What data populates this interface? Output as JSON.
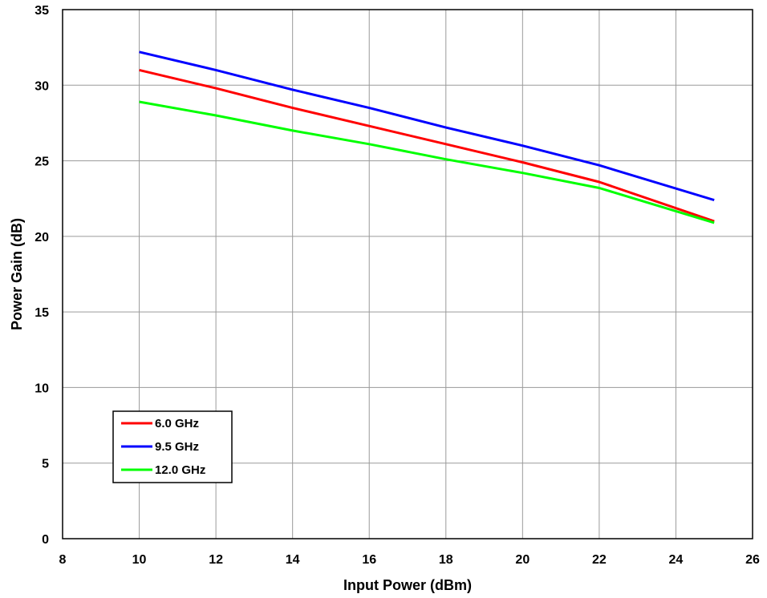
{
  "chart_data": {
    "type": "line",
    "xlabel": "Input Power (dBm)",
    "ylabel": "Power Gain  (dB)",
    "xlim": [
      8,
      26
    ],
    "ylim": [
      0,
      35
    ],
    "x_ticks": [
      "8",
      "10",
      "12",
      "14",
      "16",
      "18",
      "20",
      "22",
      "24",
      "26"
    ],
    "y_ticks": [
      "0",
      "5",
      "10",
      "15",
      "20",
      "25",
      "30",
      "35"
    ],
    "grid": true,
    "legend_position": "bottom-left",
    "series": [
      {
        "name": "6.0 GHz",
        "color": "#ff0000",
        "x": [
          10,
          12,
          14,
          16,
          18,
          20,
          22,
          25
        ],
        "y": [
          31.0,
          29.8,
          28.5,
          27.3,
          26.1,
          24.9,
          23.6,
          21.0
        ]
      },
      {
        "name": "9.5 GHz",
        "color": "#0000ff",
        "x": [
          10,
          12,
          14,
          16,
          18,
          20,
          22,
          25
        ],
        "y": [
          32.2,
          31.0,
          29.7,
          28.5,
          27.2,
          26.0,
          24.7,
          22.4
        ]
      },
      {
        "name": "12.0 GHz",
        "color": "#00ff00",
        "x": [
          10,
          12,
          14,
          16,
          18,
          20,
          22,
          25
        ],
        "y": [
          28.9,
          28.0,
          27.0,
          26.1,
          25.1,
          24.2,
          23.2,
          20.9
        ]
      }
    ]
  }
}
